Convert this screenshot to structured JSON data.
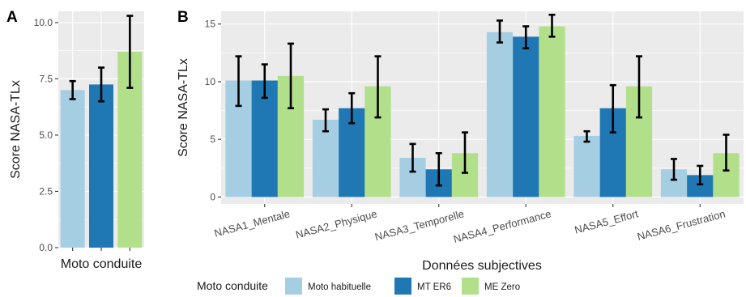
{
  "colors": {
    "Moto habituelle": "#a6cee3",
    "MT ER6": "#1f78b4",
    "ME Zero": "#b2df8a"
  },
  "chart_data": [
    {
      "panel": "A",
      "type": "bar",
      "xlabel": "Moto conduite",
      "ylabel": "Score NASA-TLx",
      "ylim": [
        0,
        10.5
      ],
      "yticks": [
        "0.0",
        "2.5",
        "5.0",
        "7.5",
        "10.0"
      ],
      "ytick_values": [
        0,
        2.5,
        5,
        7.5,
        10
      ],
      "grid": true,
      "categories": [
        "Moto habituelle",
        "MT ER6",
        "ME Zero"
      ],
      "values": [
        7.0,
        7.25,
        8.7
      ],
      "error_low": [
        6.6,
        6.5,
        7.1
      ],
      "error_high": [
        7.4,
        8.0,
        10.3
      ]
    },
    {
      "panel": "B",
      "type": "bar",
      "xlabel": "Données subjectives",
      "ylabel": "Score NASA-TLx",
      "ylim": [
        -0.6,
        16.1
      ],
      "yticks": [
        "0",
        "5",
        "10",
        "15"
      ],
      "ytick_values": [
        0,
        5,
        10,
        15
      ],
      "grid": true,
      "categories": [
        "NASA1_Mentale",
        "NASA2_Physique",
        "NASA3_Temporelle",
        "NASA4_Performance",
        "NASA5_Effort",
        "NASA6_Frustration"
      ],
      "series": [
        {
          "name": "Moto habituelle",
          "values": [
            10.1,
            6.7,
            3.4,
            14.3,
            5.3,
            2.4
          ],
          "error_low": [
            7.9,
            5.7,
            2.2,
            13.4,
            4.8,
            1.5
          ],
          "error_high": [
            12.2,
            7.6,
            4.6,
            15.3,
            5.7,
            3.3
          ]
        },
        {
          "name": "MT ER6",
          "values": [
            10.1,
            7.7,
            2.4,
            13.9,
            7.7,
            1.9
          ],
          "error_low": [
            8.6,
            6.4,
            1.0,
            12.9,
            5.6,
            1.1
          ],
          "error_high": [
            11.5,
            9.0,
            3.8,
            14.8,
            9.7,
            2.7
          ]
        },
        {
          "name": "ME Zero",
          "values": [
            10.5,
            9.6,
            3.8,
            14.8,
            9.6,
            3.8
          ],
          "error_low": [
            7.7,
            6.9,
            2.1,
            13.9,
            6.9,
            2.3
          ],
          "error_high": [
            13.3,
            12.2,
            5.6,
            15.8,
            12.2,
            5.4
          ]
        }
      ],
      "legend": {
        "title": "Moto conduite",
        "position": "bottom",
        "entries": [
          "Moto habituelle",
          "MT ER6",
          "ME Zero"
        ]
      }
    }
  ]
}
